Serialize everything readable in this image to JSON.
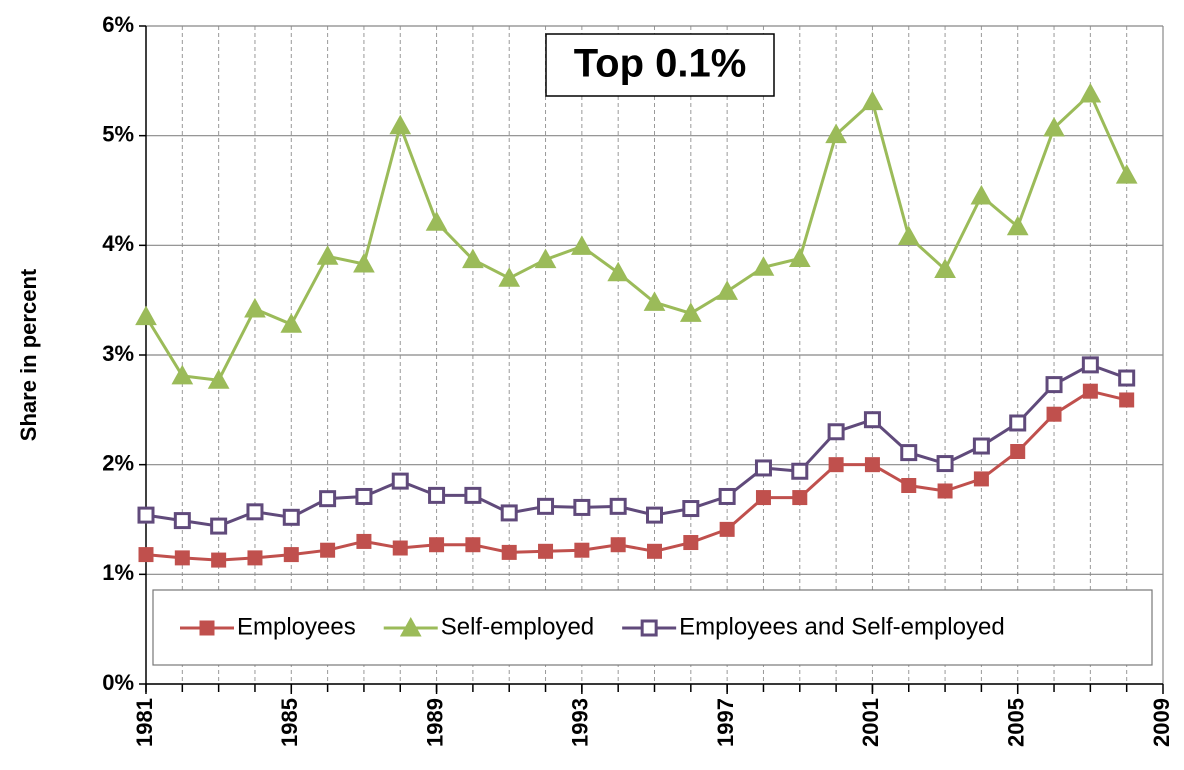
{
  "chart_data": {
    "type": "line",
    "annotation": "Top 0.1%",
    "y_label": "Share in percent",
    "x": [
      1981,
      1982,
      1983,
      1984,
      1985,
      1986,
      1987,
      1988,
      1989,
      1990,
      1991,
      1992,
      1993,
      1994,
      1995,
      1996,
      1997,
      1998,
      1999,
      2000,
      2001,
      2002,
      2003,
      2004,
      2005,
      2006,
      2007,
      2008
    ],
    "series": [
      {
        "name": "Employees",
        "color": "#c0504d",
        "marker": "square",
        "values": [
          1.18,
          1.15,
          1.13,
          1.15,
          1.18,
          1.22,
          1.3,
          1.24,
          1.27,
          1.27,
          1.2,
          1.21,
          1.22,
          1.27,
          1.21,
          1.29,
          1.41,
          1.7,
          1.7,
          2.0,
          2.0,
          1.81,
          1.76,
          1.87,
          2.12,
          2.46,
          2.67,
          2.59
        ]
      },
      {
        "name": "Self-employed",
        "color": "#9bbb59",
        "marker": "triangle",
        "values": [
          3.35,
          2.81,
          2.77,
          3.42,
          3.28,
          3.9,
          3.83,
          5.09,
          4.21,
          3.87,
          3.7,
          3.87,
          3.99,
          3.75,
          3.48,
          3.38,
          3.58,
          3.8,
          3.88,
          5.01,
          5.31,
          4.08,
          3.78,
          4.45,
          4.17,
          5.07,
          5.38,
          4.64
        ]
      },
      {
        "name": "Employees and Self-employed",
        "color": "#604a7b",
        "marker": "open-square",
        "values": [
          1.54,
          1.49,
          1.44,
          1.57,
          1.52,
          1.69,
          1.71,
          1.85,
          1.72,
          1.72,
          1.56,
          1.62,
          1.61,
          1.62,
          1.54,
          1.6,
          1.71,
          1.97,
          1.94,
          2.3,
          2.41,
          2.11,
          2.01,
          2.17,
          2.38,
          2.73,
          2.91,
          2.79
        ]
      }
    ],
    "xlim": [
      1981,
      2009
    ],
    "xticks": [
      1981,
      1985,
      1989,
      1993,
      1997,
      2001,
      2005,
      2009
    ],
    "ylim": [
      0,
      6
    ],
    "yticks": [
      {
        "value": 0,
        "label": "0%"
      },
      {
        "value": 1,
        "label": "1%"
      },
      {
        "value": 2,
        "label": "2%"
      },
      {
        "value": 3,
        "label": "3%"
      },
      {
        "value": 4,
        "label": "4%"
      },
      {
        "value": 5,
        "label": "5%"
      },
      {
        "value": 6,
        "label": "6%"
      }
    ],
    "grid": true,
    "legend": "bottom"
  }
}
